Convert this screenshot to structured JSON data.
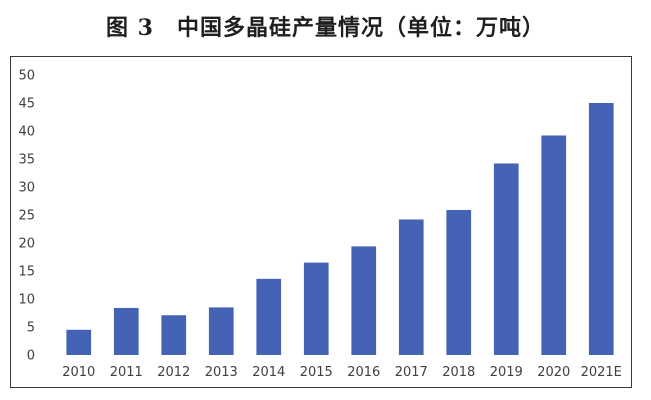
{
  "title": "图 3　中国多晶硅产量情况（单位：万吨）",
  "chart_data": {
    "type": "bar",
    "title": "图 3　中国多晶硅产量情况（单位：万吨）",
    "xlabel": "",
    "ylabel": "",
    "categories": [
      "2010",
      "2011",
      "2012",
      "2013",
      "2014",
      "2015",
      "2016",
      "2017",
      "2018",
      "2019",
      "2020",
      "2021E"
    ],
    "values": [
      4.5,
      8.4,
      7.1,
      8.5,
      13.6,
      16.5,
      19.4,
      24.2,
      25.9,
      34.2,
      39.2,
      45.0
    ],
    "ylim": [
      0,
      50
    ],
    "yticks": [
      0,
      5,
      10,
      15,
      20,
      25,
      30,
      35,
      40,
      45,
      50
    ],
    "grid": false,
    "bar_color": "#4463b4"
  }
}
